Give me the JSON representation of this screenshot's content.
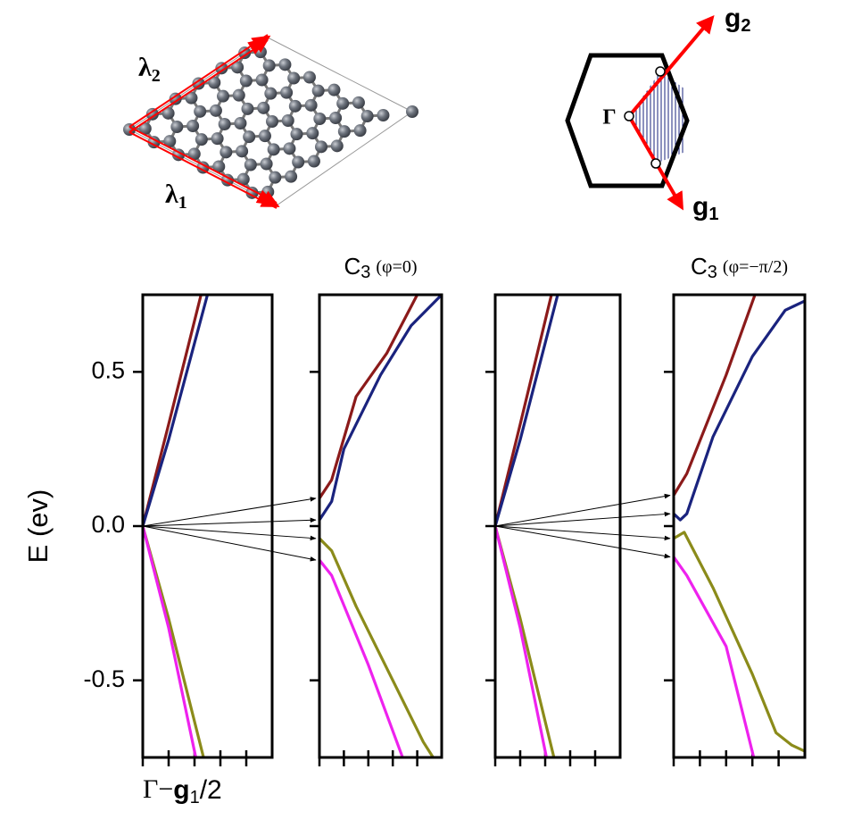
{
  "illustration": {
    "lattice_labels": [
      {
        "symbol": "λ",
        "sub": "2"
      },
      {
        "symbol": "λ",
        "sub": "1"
      }
    ],
    "zone_labels": {
      "gamma": "Γ",
      "g2": {
        "symbol": "g",
        "sub": "2"
      },
      "g1": {
        "symbol": "g",
        "sub": "1"
      }
    }
  },
  "chart_data": [
    {
      "type": "line",
      "y_label": "E (ev)",
      "x_label": {
        "pre": "Γ−",
        "symbol": "g",
        "sub": "1",
        "post": "/2"
      },
      "xlim": [
        0,
        1
      ],
      "xticks": [
        0,
        0.2,
        0.4,
        0.6,
        0.8
      ],
      "ylim": [
        -0.75,
        0.75
      ],
      "yticks": [
        0.5,
        {
          "value": 0,
          "label": "0.0"
        },
        -0.5
      ],
      "series": [
        {
          "color": "#8b1a1a",
          "x": [
            0,
            0.2,
            0.45
          ],
          "values": [
            0,
            0.33,
            0.75
          ]
        },
        {
          "color": "#1a237e",
          "x": [
            0,
            0.2,
            0.5
          ],
          "values": [
            0,
            0.28,
            0.75
          ]
        },
        {
          "color": "#8b8b1a",
          "x": [
            0,
            0.2,
            0.47
          ],
          "values": [
            0,
            -0.3,
            -0.75
          ]
        },
        {
          "color": "#ee22ee",
          "x": [
            0,
            0.2,
            0.41
          ],
          "values": [
            0,
            -0.33,
            -0.75
          ]
        }
      ]
    },
    {
      "type": "line",
      "title": {
        "main": "C",
        "sub": "3",
        "note": "(φ=0)"
      },
      "xlim": [
        0,
        1
      ],
      "xticks": [
        0,
        0.2,
        0.4,
        0.6,
        0.8
      ],
      "ylim": [
        -0.75,
        0.75
      ],
      "yticks": [
        0.5,
        0,
        -0.5
      ],
      "series": [
        {
          "color": "#8b1a1a",
          "x": [
            0,
            0.1,
            0.3,
            0.55,
            0.8
          ],
          "values": [
            0.09,
            0.15,
            0.42,
            0.56,
            0.75
          ]
        },
        {
          "color": "#1a237e",
          "x": [
            0,
            0.1,
            0.2,
            0.5,
            0.75,
            1.0
          ],
          "values": [
            0.02,
            0.08,
            0.25,
            0.49,
            0.65,
            0.75
          ]
        },
        {
          "color": "#8b8b1a",
          "x": [
            0,
            0.1,
            0.3,
            0.6,
            0.85,
            0.93
          ],
          "values": [
            -0.04,
            -0.08,
            -0.26,
            -0.5,
            -0.7,
            -0.75
          ]
        },
        {
          "color": "#ee22ee",
          "x": [
            0,
            0.1,
            0.4,
            0.68
          ],
          "values": [
            -0.11,
            -0.16,
            -0.45,
            -0.75
          ]
        }
      ]
    },
    {
      "type": "line",
      "xlim": [
        0,
        1
      ],
      "xticks": [
        0,
        0.2,
        0.4,
        0.6,
        0.8
      ],
      "ylim": [
        -0.75,
        0.75
      ],
      "yticks": [
        0.5,
        0,
        -0.5
      ],
      "series": [
        {
          "color": "#8b1a1a",
          "x": [
            0,
            0.2,
            0.45
          ],
          "values": [
            0,
            0.33,
            0.75
          ]
        },
        {
          "color": "#1a237e",
          "x": [
            0,
            0.2,
            0.5
          ],
          "values": [
            0,
            0.28,
            0.75
          ]
        },
        {
          "color": "#8b8b1a",
          "x": [
            0,
            0.2,
            0.47
          ],
          "values": [
            0,
            -0.3,
            -0.75
          ]
        },
        {
          "color": "#ee22ee",
          "x": [
            0,
            0.2,
            0.41
          ],
          "values": [
            0,
            -0.33,
            -0.75
          ]
        }
      ]
    },
    {
      "type": "line",
      "title": {
        "main": "C",
        "sub": "3",
        "note": "(φ=−π/2)"
      },
      "xlim": [
        0,
        1
      ],
      "xticks": [
        0,
        0.2,
        0.4,
        0.6,
        0.8
      ],
      "ylim": [
        -0.75,
        0.75
      ],
      "yticks": [
        0.5,
        0,
        -0.5
      ],
      "series": [
        {
          "color": "#8b1a1a",
          "x": [
            0,
            0.1,
            0.4,
            0.62
          ],
          "values": [
            0.1,
            0.17,
            0.49,
            0.75
          ]
        },
        {
          "color": "#1a237e",
          "x": [
            0,
            0.05,
            0.1,
            0.3,
            0.6,
            0.85,
            1.0
          ],
          "values": [
            0.04,
            0.02,
            0.04,
            0.29,
            0.55,
            0.7,
            0.73
          ]
        },
        {
          "color": "#8b8b1a",
          "x": [
            0,
            0.08,
            0.3,
            0.6,
            0.78,
            0.9,
            1.0
          ],
          "values": [
            -0.04,
            -0.02,
            -0.2,
            -0.48,
            -0.67,
            -0.71,
            -0.73
          ]
        },
        {
          "color": "#ee22ee",
          "x": [
            0,
            0.1,
            0.4,
            0.61
          ],
          "values": [
            -0.1,
            -0.16,
            -0.39,
            -0.75
          ]
        }
      ]
    }
  ]
}
